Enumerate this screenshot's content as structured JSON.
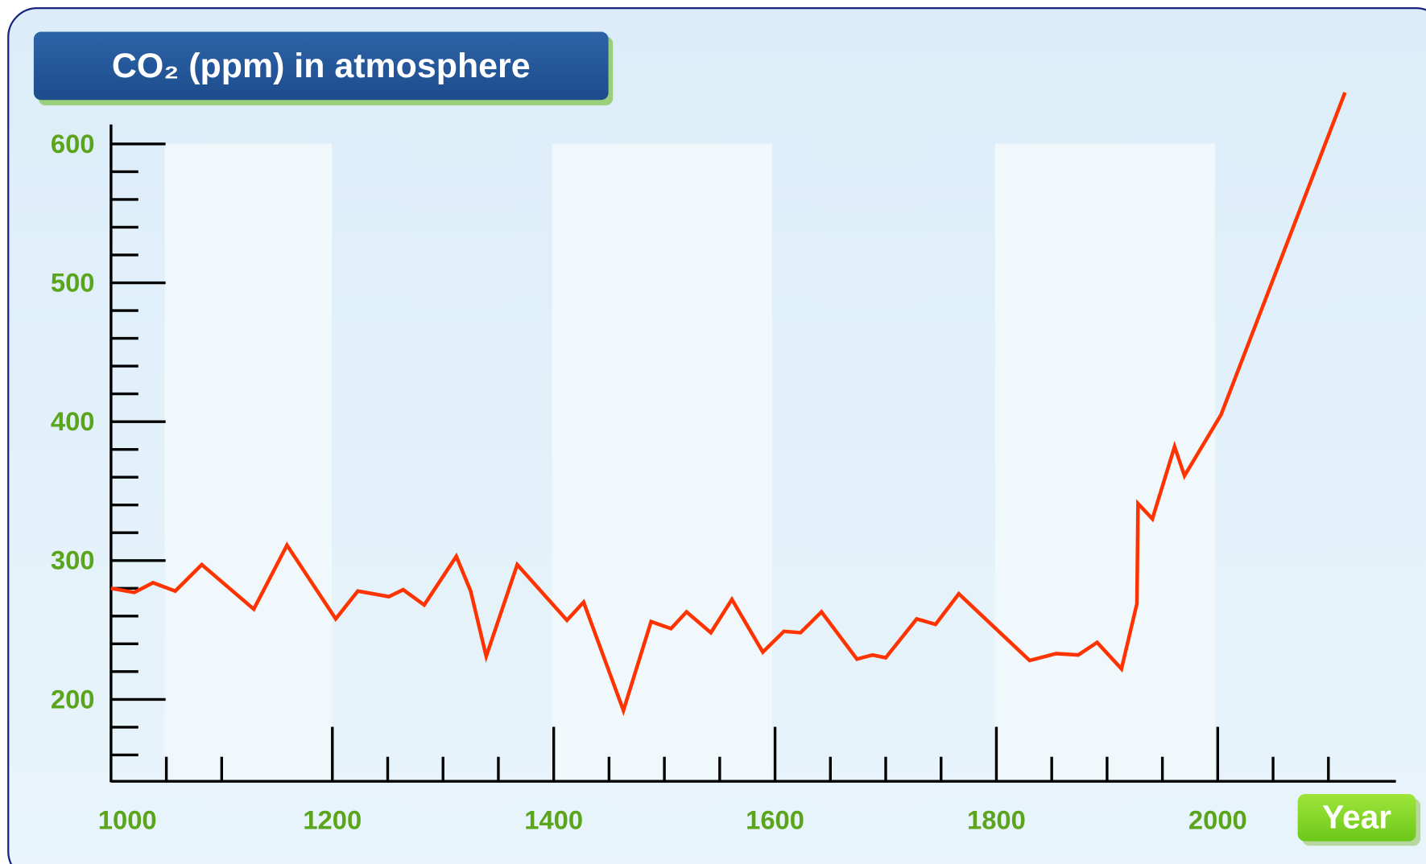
{
  "chart_data": {
    "type": "line",
    "title": "CO₂ (ppm) in atmosphere",
    "x_label": "Year",
    "color": "#ff3300",
    "x": [
      1000,
      1021,
      1038,
      1058,
      1082,
      1129,
      1159,
      1203,
      1223,
      1251,
      1264,
      1283,
      1312,
      1325,
      1339,
      1367,
      1412,
      1427,
      1463,
      1488,
      1506,
      1520,
      1542,
      1561,
      1589,
      1608,
      1623,
      1642,
      1674,
      1688,
      1700,
      1728,
      1745,
      1766,
      1830,
      1854,
      1874,
      1891,
      1913,
      1927,
      1928,
      1941,
      1961,
      1970,
      2003,
      2115
    ],
    "values": [
      280,
      277,
      284,
      278,
      297,
      265,
      311,
      258,
      278,
      274,
      279,
      268,
      303,
      278,
      231,
      297,
      257,
      270,
      192,
      256,
      251,
      263,
      248,
      272,
      234,
      249,
      248,
      263,
      229,
      232,
      230,
      258,
      254,
      276,
      228,
      233,
      232,
      241,
      222,
      269,
      341,
      330,
      382,
      361,
      405,
      637
    ],
    "xlim": [
      1000,
      2161
    ],
    "xticks": [
      1000,
      1200,
      1400,
      1600,
      1800,
      2000
    ],
    "x_minor_ticks": [
      1050,
      1100,
      1250,
      1300,
      1350,
      1450,
      1500,
      1550,
      1650,
      1700,
      1750,
      1850,
      1900,
      1950,
      2050,
      2100
    ],
    "ylim": [
      141,
      614
    ],
    "yticks": [
      200,
      300,
      400,
      500,
      600
    ],
    "y_minor_ticks": [
      160,
      180,
      220,
      240,
      260,
      280,
      320,
      340,
      360,
      380,
      420,
      440,
      460,
      480,
      520,
      540,
      560,
      580
    ]
  }
}
